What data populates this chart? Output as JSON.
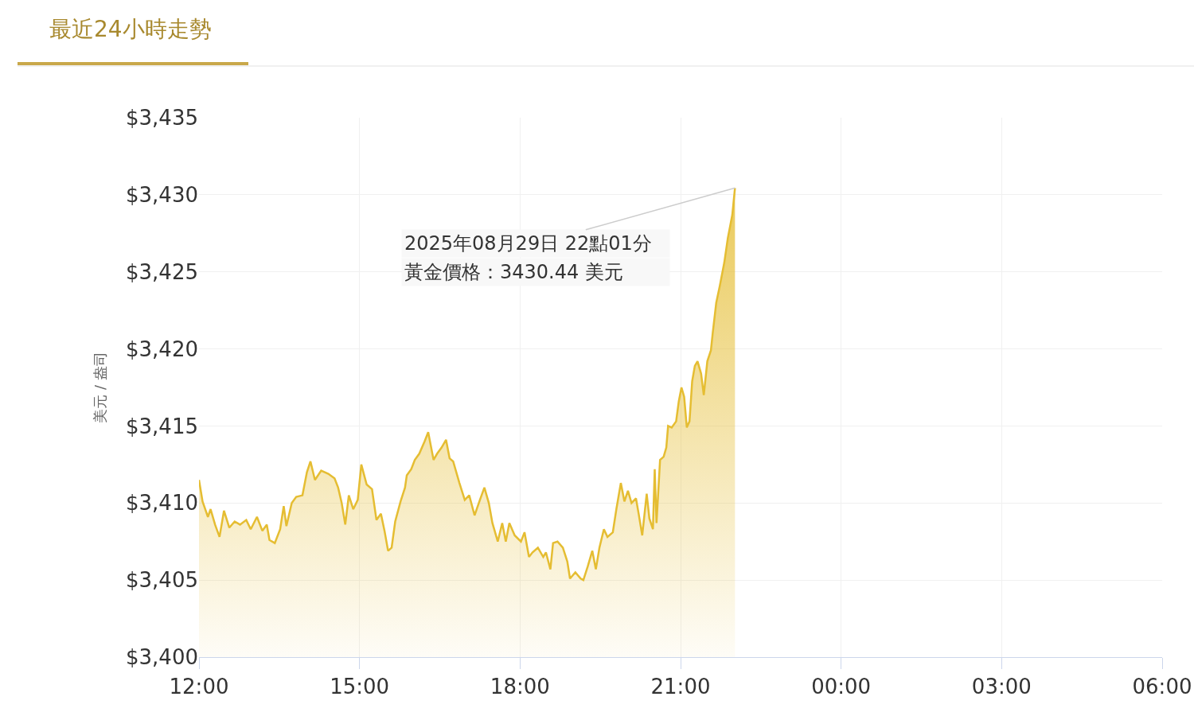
{
  "chart_data": {
    "type": "area",
    "title": "最近24小時走勢",
    "ylabel": "美元 / 盎司",
    "x": [
      "2025-08-29T12:00",
      "2025-08-29T12:04",
      "2025-08-29T12:10",
      "2025-08-29T12:13",
      "2025-08-29T12:18",
      "2025-08-29T12:23",
      "2025-08-29T12:28",
      "2025-08-29T12:34",
      "2025-08-29T12:40",
      "2025-08-29T12:46",
      "2025-08-29T12:53",
      "2025-08-29T12:58",
      "2025-08-29T13:05",
      "2025-08-29T13:11",
      "2025-08-29T13:16",
      "2025-08-29T13:19",
      "2025-08-29T13:25",
      "2025-08-29T13:31",
      "2025-08-29T13:35",
      "2025-08-29T13:38",
      "2025-08-29T13:44",
      "2025-08-29T13:49",
      "2025-08-29T13:56",
      "2025-08-29T14:01",
      "2025-08-29T14:05",
      "2025-08-29T14:10",
      "2025-08-29T14:17",
      "2025-08-29T14:25",
      "2025-08-29T14:32",
      "2025-08-29T14:36",
      "2025-08-29T14:40",
      "2025-08-29T14:44",
      "2025-08-29T14:48",
      "2025-08-29T14:53",
      "2025-08-29T14:58",
      "2025-08-29T15:02",
      "2025-08-29T15:08",
      "2025-08-29T15:14",
      "2025-08-29T15:19",
      "2025-08-29T15:24",
      "2025-08-29T15:28",
      "2025-08-29T15:32",
      "2025-08-29T15:36",
      "2025-08-29T15:40",
      "2025-08-29T15:46",
      "2025-08-29T15:51",
      "2025-08-29T15:53",
      "2025-08-29T15:58",
      "2025-08-29T16:02",
      "2025-08-29T16:07",
      "2025-08-29T16:13",
      "2025-08-29T16:17",
      "2025-08-29T16:23",
      "2025-08-29T16:27",
      "2025-08-29T16:32",
      "2025-08-29T16:37",
      "2025-08-29T16:41",
      "2025-08-29T16:45",
      "2025-08-29T16:52",
      "2025-08-29T16:58",
      "2025-08-29T17:03",
      "2025-08-29T17:09",
      "2025-08-29T17:15",
      "2025-08-29T17:20",
      "2025-08-29T17:25",
      "2025-08-29T17:29",
      "2025-08-29T17:35",
      "2025-08-29T17:40",
      "2025-08-29T17:44",
      "2025-08-29T17:48",
      "2025-08-29T17:54",
      "2025-08-29T18:01",
      "2025-08-29T18:05",
      "2025-08-29T18:10",
      "2025-08-29T18:14",
      "2025-08-29T18:20",
      "2025-08-29T18:26",
      "2025-08-29T18:29",
      "2025-08-29T18:34",
      "2025-08-29T18:37",
      "2025-08-29T18:42",
      "2025-08-29T18:48",
      "2025-08-29T18:53",
      "2025-08-29T18:56",
      "2025-08-29T19:02",
      "2025-08-29T19:08",
      "2025-08-29T19:11",
      "2025-08-29T19:16",
      "2025-08-29T19:21",
      "2025-08-29T19:25",
      "2025-08-29T19:29",
      "2025-08-29T19:34",
      "2025-08-29T19:38",
      "2025-08-29T19:44",
      "2025-08-29T19:48",
      "2025-08-29T19:53",
      "2025-08-29T19:57",
      "2025-08-29T20:01",
      "2025-08-29T20:05",
      "2025-08-29T20:10",
      "2025-08-29T20:13",
      "2025-08-29T20:17",
      "2025-08-29T20:22",
      "2025-08-29T20:25",
      "2025-08-29T20:29",
      "2025-08-29T20:31",
      "2025-08-29T20:33",
      "2025-08-29T20:37",
      "2025-08-29T20:41",
      "2025-08-29T20:44",
      "2025-08-29T20:46",
      "2025-08-29T20:50",
      "2025-08-29T20:55",
      "2025-08-29T20:58",
      "2025-08-29T21:01",
      "2025-08-29T21:04",
      "2025-08-29T21:07",
      "2025-08-29T21:10",
      "2025-08-29T21:13",
      "2025-08-29T21:16",
      "2025-08-29T21:19",
      "2025-08-29T21:23",
      "2025-08-29T21:26",
      "2025-08-29T21:30",
      "2025-08-29T21:34",
      "2025-08-29T21:36",
      "2025-08-29T21:40",
      "2025-08-29T21:44",
      "2025-08-29T21:49",
      "2025-08-29T21:53",
      "2025-08-29T21:58",
      "2025-08-29T22:01"
    ],
    "series": [
      {
        "color": "#e5bd32",
        "values": [
          3411.5,
          3410.1,
          3409.1,
          3409.6,
          3408.6,
          3407.8,
          3409.5,
          3408.4,
          3408.8,
          3408.6,
          3408.9,
          3408.3,
          3409.1,
          3408.2,
          3408.6,
          3407.6,
          3407.4,
          3408.3,
          3409.8,
          3408.5,
          3410.0,
          3410.4,
          3410.5,
          3412.0,
          3412.7,
          3411.5,
          3412.1,
          3411.9,
          3411.6,
          3411.0,
          3410.0,
          3408.6,
          3410.5,
          3409.6,
          3410.2,
          3412.5,
          3411.2,
          3410.9,
          3408.9,
          3409.3,
          3408.2,
          3406.9,
          3407.1,
          3408.8,
          3410.1,
          3411.0,
          3411.8,
          3412.2,
          3412.8,
          3413.2,
          3414.0,
          3414.6,
          3412.8,
          3413.2,
          3413.6,
          3414.1,
          3412.9,
          3412.7,
          3411.3,
          3410.2,
          3410.5,
          3409.2,
          3410.2,
          3411.0,
          3410.0,
          3408.7,
          3407.5,
          3408.7,
          3407.5,
          3408.7,
          3407.9,
          3407.5,
          3408.1,
          3406.5,
          3406.8,
          3407.1,
          3406.5,
          3406.8,
          3405.7,
          3407.4,
          3407.5,
          3407.1,
          3406.2,
          3405.1,
          3405.5,
          3405.1,
          3405.0,
          3405.9,
          3406.9,
          3405.7,
          3407.1,
          3408.3,
          3407.8,
          3408.1,
          3409.6,
          3411.3,
          3410.1,
          3410.8,
          3410.0,
          3410.3,
          3409.3,
          3407.9,
          3410.6,
          3409.0,
          3408.3,
          3412.2,
          3408.7,
          3412.8,
          3413.0,
          3413.6,
          3415.0,
          3414.9,
          3415.3,
          3416.6,
          3417.5,
          3416.9,
          3414.9,
          3415.3,
          3417.9,
          3418.9,
          3419.2,
          3418.4,
          3417.0,
          3419.2,
          3419.9,
          3421.0,
          3423.0,
          3424.1,
          3425.6,
          3427.2,
          3428.7,
          3430.44
        ]
      }
    ],
    "xlim": [
      "2025-08-29T12:00",
      "2025-08-30T06:00"
    ],
    "xticks": [
      {
        "value": "2025-08-29T12:00",
        "label": "12:00"
      },
      {
        "value": "2025-08-29T15:00",
        "label": "15:00"
      },
      {
        "value": "2025-08-29T18:00",
        "label": "18:00"
      },
      {
        "value": "2025-08-29T21:00",
        "label": "21:00"
      },
      {
        "value": "2025-08-30T00:00",
        "label": "00:00"
      },
      {
        "value": "2025-08-30T03:00",
        "label": "03:00"
      },
      {
        "value": "2025-08-30T06:00",
        "label": "06:00"
      }
    ],
    "ylim": [
      3400,
      3435
    ],
    "yticks": [
      {
        "value": 3400,
        "label": "$3,400"
      },
      {
        "value": 3405,
        "label": "$3,405"
      },
      {
        "value": 3410,
        "label": "$3,410"
      },
      {
        "value": 3415,
        "label": "$3,415"
      },
      {
        "value": 3420,
        "label": "$3,420"
      },
      {
        "value": 3425,
        "label": "$3,425"
      },
      {
        "value": 3430,
        "label": "$3,430"
      },
      {
        "value": 3435,
        "label": "$3,435"
      }
    ],
    "grid": true,
    "annotations": [
      {
        "text": "2025年08月29日 22點01分",
        "x": "2025-08-29T22:01",
        "y": 3430.44
      },
      "黃金價格：3430.44 美元"
    ]
  }
}
